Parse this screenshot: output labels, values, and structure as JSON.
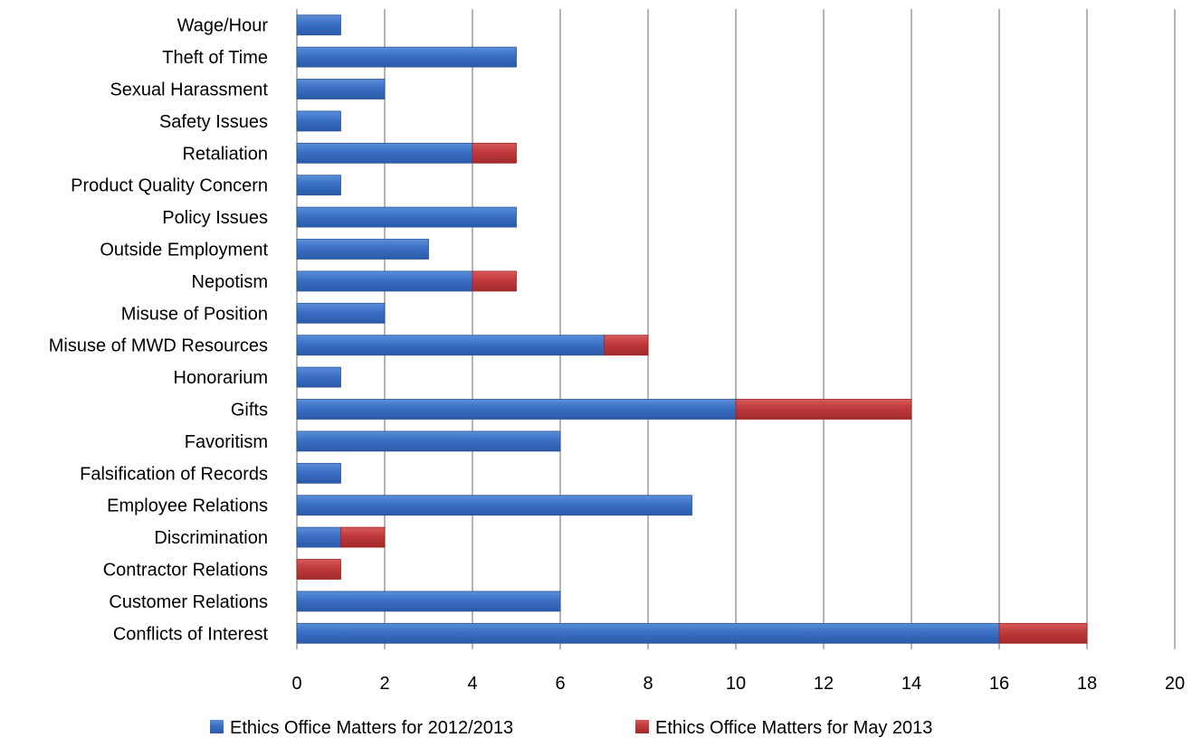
{
  "chart_data": {
    "type": "bar",
    "orientation": "horizontal",
    "stacked": true,
    "title": "",
    "xlabel": "",
    "ylabel": "",
    "xlim": [
      0,
      20
    ],
    "x_ticks": [
      "0",
      "2",
      "4",
      "6",
      "8",
      "10",
      "12",
      "14",
      "16",
      "18",
      "20"
    ],
    "grid": "vertical",
    "legend_position": "bottom",
    "categories": [
      "Wage/Hour",
      "Theft of Time",
      "Sexual Harassment",
      "Safety Issues",
      "Retaliation",
      "Product Quality Concern",
      "Policy Issues",
      "Outside Employment",
      "Nepotism",
      "Misuse of Position",
      "Misuse of MWD Resources",
      "Honorarium",
      "Gifts",
      "Favoritism",
      "Falsification of Records",
      "Employee Relations",
      "Discrimination",
      "Contractor Relations",
      "Customer Relations",
      "Conflicts of Interest"
    ],
    "series": [
      {
        "name": "Ethics Office Matters for 2012/2013",
        "color": "#3a6fc4",
        "values": [
          1,
          5,
          2,
          1,
          4,
          1,
          5,
          3,
          4,
          2,
          7,
          1,
          10,
          6,
          1,
          9,
          1,
          0,
          6,
          16
        ]
      },
      {
        "name": "Ethics Office Matters for May 2013",
        "color": "#c0393b",
        "values": [
          0,
          0,
          0,
          0,
          1,
          0,
          0,
          0,
          1,
          0,
          1,
          0,
          4,
          0,
          0,
          0,
          1,
          1,
          0,
          2
        ]
      }
    ]
  }
}
